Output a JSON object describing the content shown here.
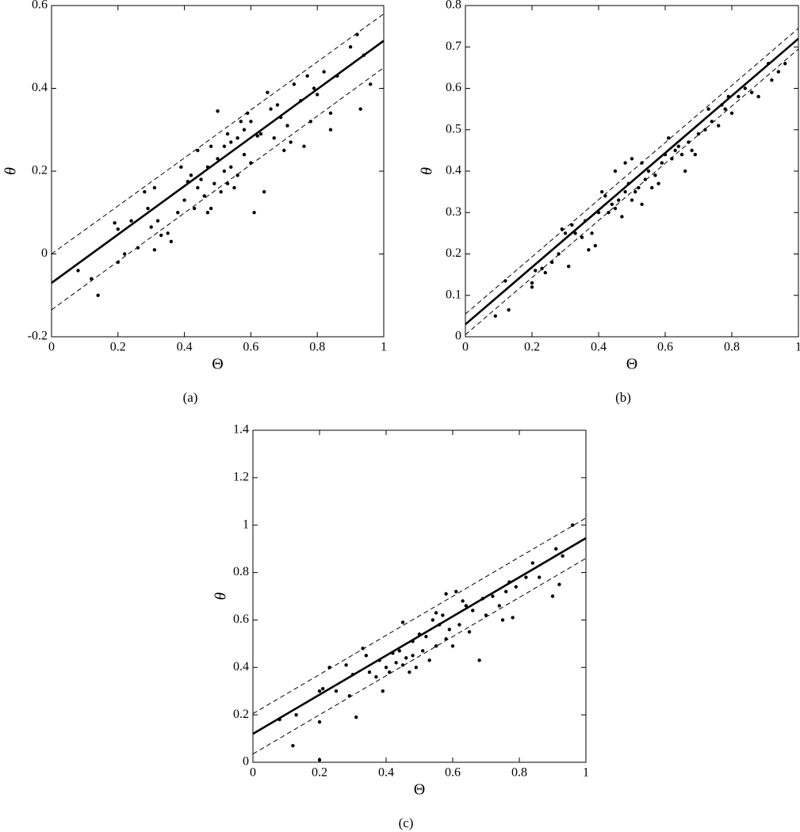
{
  "chart_data": [
    {
      "type": "scatter",
      "caption": "(a)",
      "xlabel": "Θ",
      "ylabel": "θ",
      "xlim": [
        0,
        1
      ],
      "ylim": [
        -0.2,
        0.6
      ],
      "xticks": [
        0,
        0.2,
        0.4,
        0.6,
        0.8,
        1
      ],
      "yticks": [
        -0.2,
        0,
        0.2,
        0.4,
        0.6
      ],
      "color": "#000000",
      "series": [
        {
          "style": "points",
          "x": [
            0.08,
            0.12,
            0.14,
            0.19,
            0.2,
            0.2,
            0.22,
            0.24,
            0.26,
            0.28,
            0.29,
            0.3,
            0.31,
            0.31,
            0.32,
            0.33,
            0.35,
            0.36,
            0.38,
            0.39,
            0.4,
            0.41,
            0.42,
            0.43,
            0.44,
            0.44,
            0.45,
            0.46,
            0.47,
            0.47,
            0.48,
            0.48,
            0.49,
            0.5,
            0.5,
            0.51,
            0.52,
            0.52,
            0.53,
            0.53,
            0.54,
            0.54,
            0.55,
            0.56,
            0.56,
            0.57,
            0.58,
            0.58,
            0.59,
            0.6,
            0.6,
            0.61,
            0.62,
            0.63,
            0.64,
            0.65,
            0.66,
            0.67,
            0.68,
            0.69,
            0.7,
            0.71,
            0.72,
            0.73,
            0.75,
            0.76,
            0.77,
            0.78,
            0.79,
            0.8,
            0.82,
            0.84,
            0.84,
            0.86,
            0.9,
            0.92,
            0.93,
            0.94,
            0.96
          ],
          "values": [
            -0.04,
            -0.06,
            -0.1,
            0.075,
            0.06,
            -0.02,
            0.0,
            0.08,
            0.015,
            0.15,
            0.11,
            0.065,
            0.01,
            0.16,
            0.08,
            0.045,
            0.05,
            0.03,
            0.1,
            0.21,
            0.13,
            0.175,
            0.19,
            0.11,
            0.25,
            0.16,
            0.18,
            0.14,
            0.21,
            0.1,
            0.26,
            0.11,
            0.17,
            0.345,
            0.23,
            0.15,
            0.2,
            0.26,
            0.29,
            0.17,
            0.27,
            0.21,
            0.16,
            0.28,
            0.19,
            0.32,
            0.24,
            0.3,
            0.34,
            0.32,
            0.22,
            0.1,
            0.285,
            0.29,
            0.15,
            0.39,
            0.35,
            0.28,
            0.36,
            0.33,
            0.25,
            0.31,
            0.27,
            0.41,
            0.37,
            0.26,
            0.43,
            0.32,
            0.4,
            0.385,
            0.44,
            0.3,
            0.34,
            0.43,
            0.5,
            0.53,
            0.35,
            0.48,
            0.41
          ]
        },
        {
          "style": "solid",
          "x": [
            0,
            1
          ],
          "values": [
            -0.07,
            0.515
          ]
        },
        {
          "style": "dashed",
          "x": [
            0,
            1
          ],
          "values": [
            0.0,
            0.58
          ]
        },
        {
          "style": "dashed",
          "x": [
            0,
            1
          ],
          "values": [
            -0.135,
            0.45
          ]
        }
      ]
    },
    {
      "type": "scatter",
      "caption": "(b)",
      "xlabel": "Θ",
      "ylabel": "θ",
      "xlim": [
        0,
        1
      ],
      "ylim": [
        0,
        0.8
      ],
      "xticks": [
        0,
        0.2,
        0.4,
        0.6,
        0.8,
        1
      ],
      "yticks": [
        0,
        0.1,
        0.2,
        0.3,
        0.4,
        0.5,
        0.6,
        0.7,
        0.8
      ],
      "color": "#000000",
      "series": [
        {
          "style": "points",
          "x": [
            0.09,
            0.12,
            0.13,
            0.2,
            0.2,
            0.21,
            0.23,
            0.24,
            0.26,
            0.28,
            0.29,
            0.3,
            0.31,
            0.32,
            0.33,
            0.35,
            0.36,
            0.37,
            0.38,
            0.39,
            0.4,
            0.41,
            0.42,
            0.43,
            0.44,
            0.45,
            0.45,
            0.46,
            0.47,
            0.48,
            0.48,
            0.49,
            0.5,
            0.5,
            0.51,
            0.52,
            0.53,
            0.53,
            0.54,
            0.55,
            0.56,
            0.57,
            0.58,
            0.59,
            0.6,
            0.61,
            0.62,
            0.63,
            0.64,
            0.65,
            0.66,
            0.67,
            0.68,
            0.69,
            0.7,
            0.72,
            0.73,
            0.74,
            0.76,
            0.77,
            0.78,
            0.79,
            0.8,
            0.82,
            0.84,
            0.86,
            0.88,
            0.91,
            0.92,
            0.94,
            0.96
          ],
          "values": [
            0.05,
            0.135,
            0.065,
            0.13,
            0.12,
            0.16,
            0.165,
            0.155,
            0.18,
            0.2,
            0.26,
            0.25,
            0.17,
            0.27,
            0.25,
            0.24,
            0.28,
            0.21,
            0.25,
            0.22,
            0.3,
            0.35,
            0.34,
            0.3,
            0.32,
            0.31,
            0.4,
            0.33,
            0.29,
            0.42,
            0.35,
            0.37,
            0.33,
            0.43,
            0.35,
            0.36,
            0.32,
            0.42,
            0.38,
            0.4,
            0.36,
            0.39,
            0.37,
            0.42,
            0.44,
            0.48,
            0.43,
            0.45,
            0.46,
            0.44,
            0.4,
            0.47,
            0.45,
            0.44,
            0.49,
            0.5,
            0.55,
            0.52,
            0.51,
            0.56,
            0.55,
            0.58,
            0.54,
            0.58,
            0.6,
            0.59,
            0.58,
            0.66,
            0.62,
            0.64,
            0.66
          ]
        },
        {
          "style": "solid",
          "x": [
            0,
            1
          ],
          "values": [
            0.03,
            0.72
          ]
        },
        {
          "style": "dashed",
          "x": [
            0,
            1
          ],
          "values": [
            0.055,
            0.745
          ]
        },
        {
          "style": "dashed",
          "x": [
            0,
            1
          ],
          "values": [
            0.005,
            0.695
          ]
        }
      ]
    },
    {
      "type": "scatter",
      "caption": "(c)",
      "xlabel": "Θ",
      "ylabel": "θ",
      "xlim": [
        0,
        1
      ],
      "ylim": [
        0,
        1.4
      ],
      "xticks": [
        0,
        0.2,
        0.4,
        0.6,
        0.8,
        1
      ],
      "yticks": [
        0,
        0.2,
        0.4,
        0.6,
        0.8,
        1,
        1.2,
        1.4
      ],
      "color": "#000000",
      "series": [
        {
          "style": "points",
          "x": [
            0.08,
            0.12,
            0.13,
            0.2,
            0.2,
            0.2,
            0.21,
            0.23,
            0.25,
            0.28,
            0.29,
            0.3,
            0.31,
            0.33,
            0.34,
            0.35,
            0.37,
            0.38,
            0.39,
            0.4,
            0.41,
            0.42,
            0.43,
            0.44,
            0.45,
            0.45,
            0.46,
            0.47,
            0.48,
            0.48,
            0.49,
            0.5,
            0.51,
            0.52,
            0.53,
            0.54,
            0.55,
            0.55,
            0.56,
            0.57,
            0.58,
            0.58,
            0.59,
            0.6,
            0.61,
            0.62,
            0.63,
            0.64,
            0.65,
            0.66,
            0.68,
            0.69,
            0.7,
            0.72,
            0.74,
            0.75,
            0.76,
            0.77,
            0.78,
            0.79,
            0.82,
            0.84,
            0.86,
            0.9,
            0.91,
            0.92,
            0.93,
            0.96
          ],
          "values": [
            0.18,
            0.07,
            0.2,
            0.3,
            0.17,
            0.01,
            0.31,
            0.4,
            0.3,
            0.41,
            0.28,
            0.37,
            0.19,
            0.48,
            0.45,
            0.38,
            0.36,
            0.43,
            0.3,
            0.4,
            0.38,
            0.46,
            0.42,
            0.47,
            0.59,
            0.41,
            0.44,
            0.38,
            0.45,
            0.51,
            0.4,
            0.54,
            0.47,
            0.53,
            0.43,
            0.6,
            0.49,
            0.63,
            0.58,
            0.62,
            0.71,
            0.52,
            0.56,
            0.49,
            0.72,
            0.58,
            0.68,
            0.66,
            0.55,
            0.64,
            0.43,
            0.69,
            0.62,
            0.7,
            0.66,
            0.6,
            0.72,
            0.76,
            0.61,
            0.74,
            0.78,
            0.84,
            0.78,
            0.7,
            0.9,
            0.75,
            0.87,
            1.0
          ]
        },
        {
          "style": "solid",
          "x": [
            0,
            1
          ],
          "values": [
            0.12,
            0.945
          ]
        },
        {
          "style": "dashed",
          "x": [
            0,
            1
          ],
          "values": [
            0.205,
            1.03
          ]
        },
        {
          "style": "dashed",
          "x": [
            0,
            1
          ],
          "values": [
            0.035,
            0.86
          ]
        }
      ]
    }
  ]
}
